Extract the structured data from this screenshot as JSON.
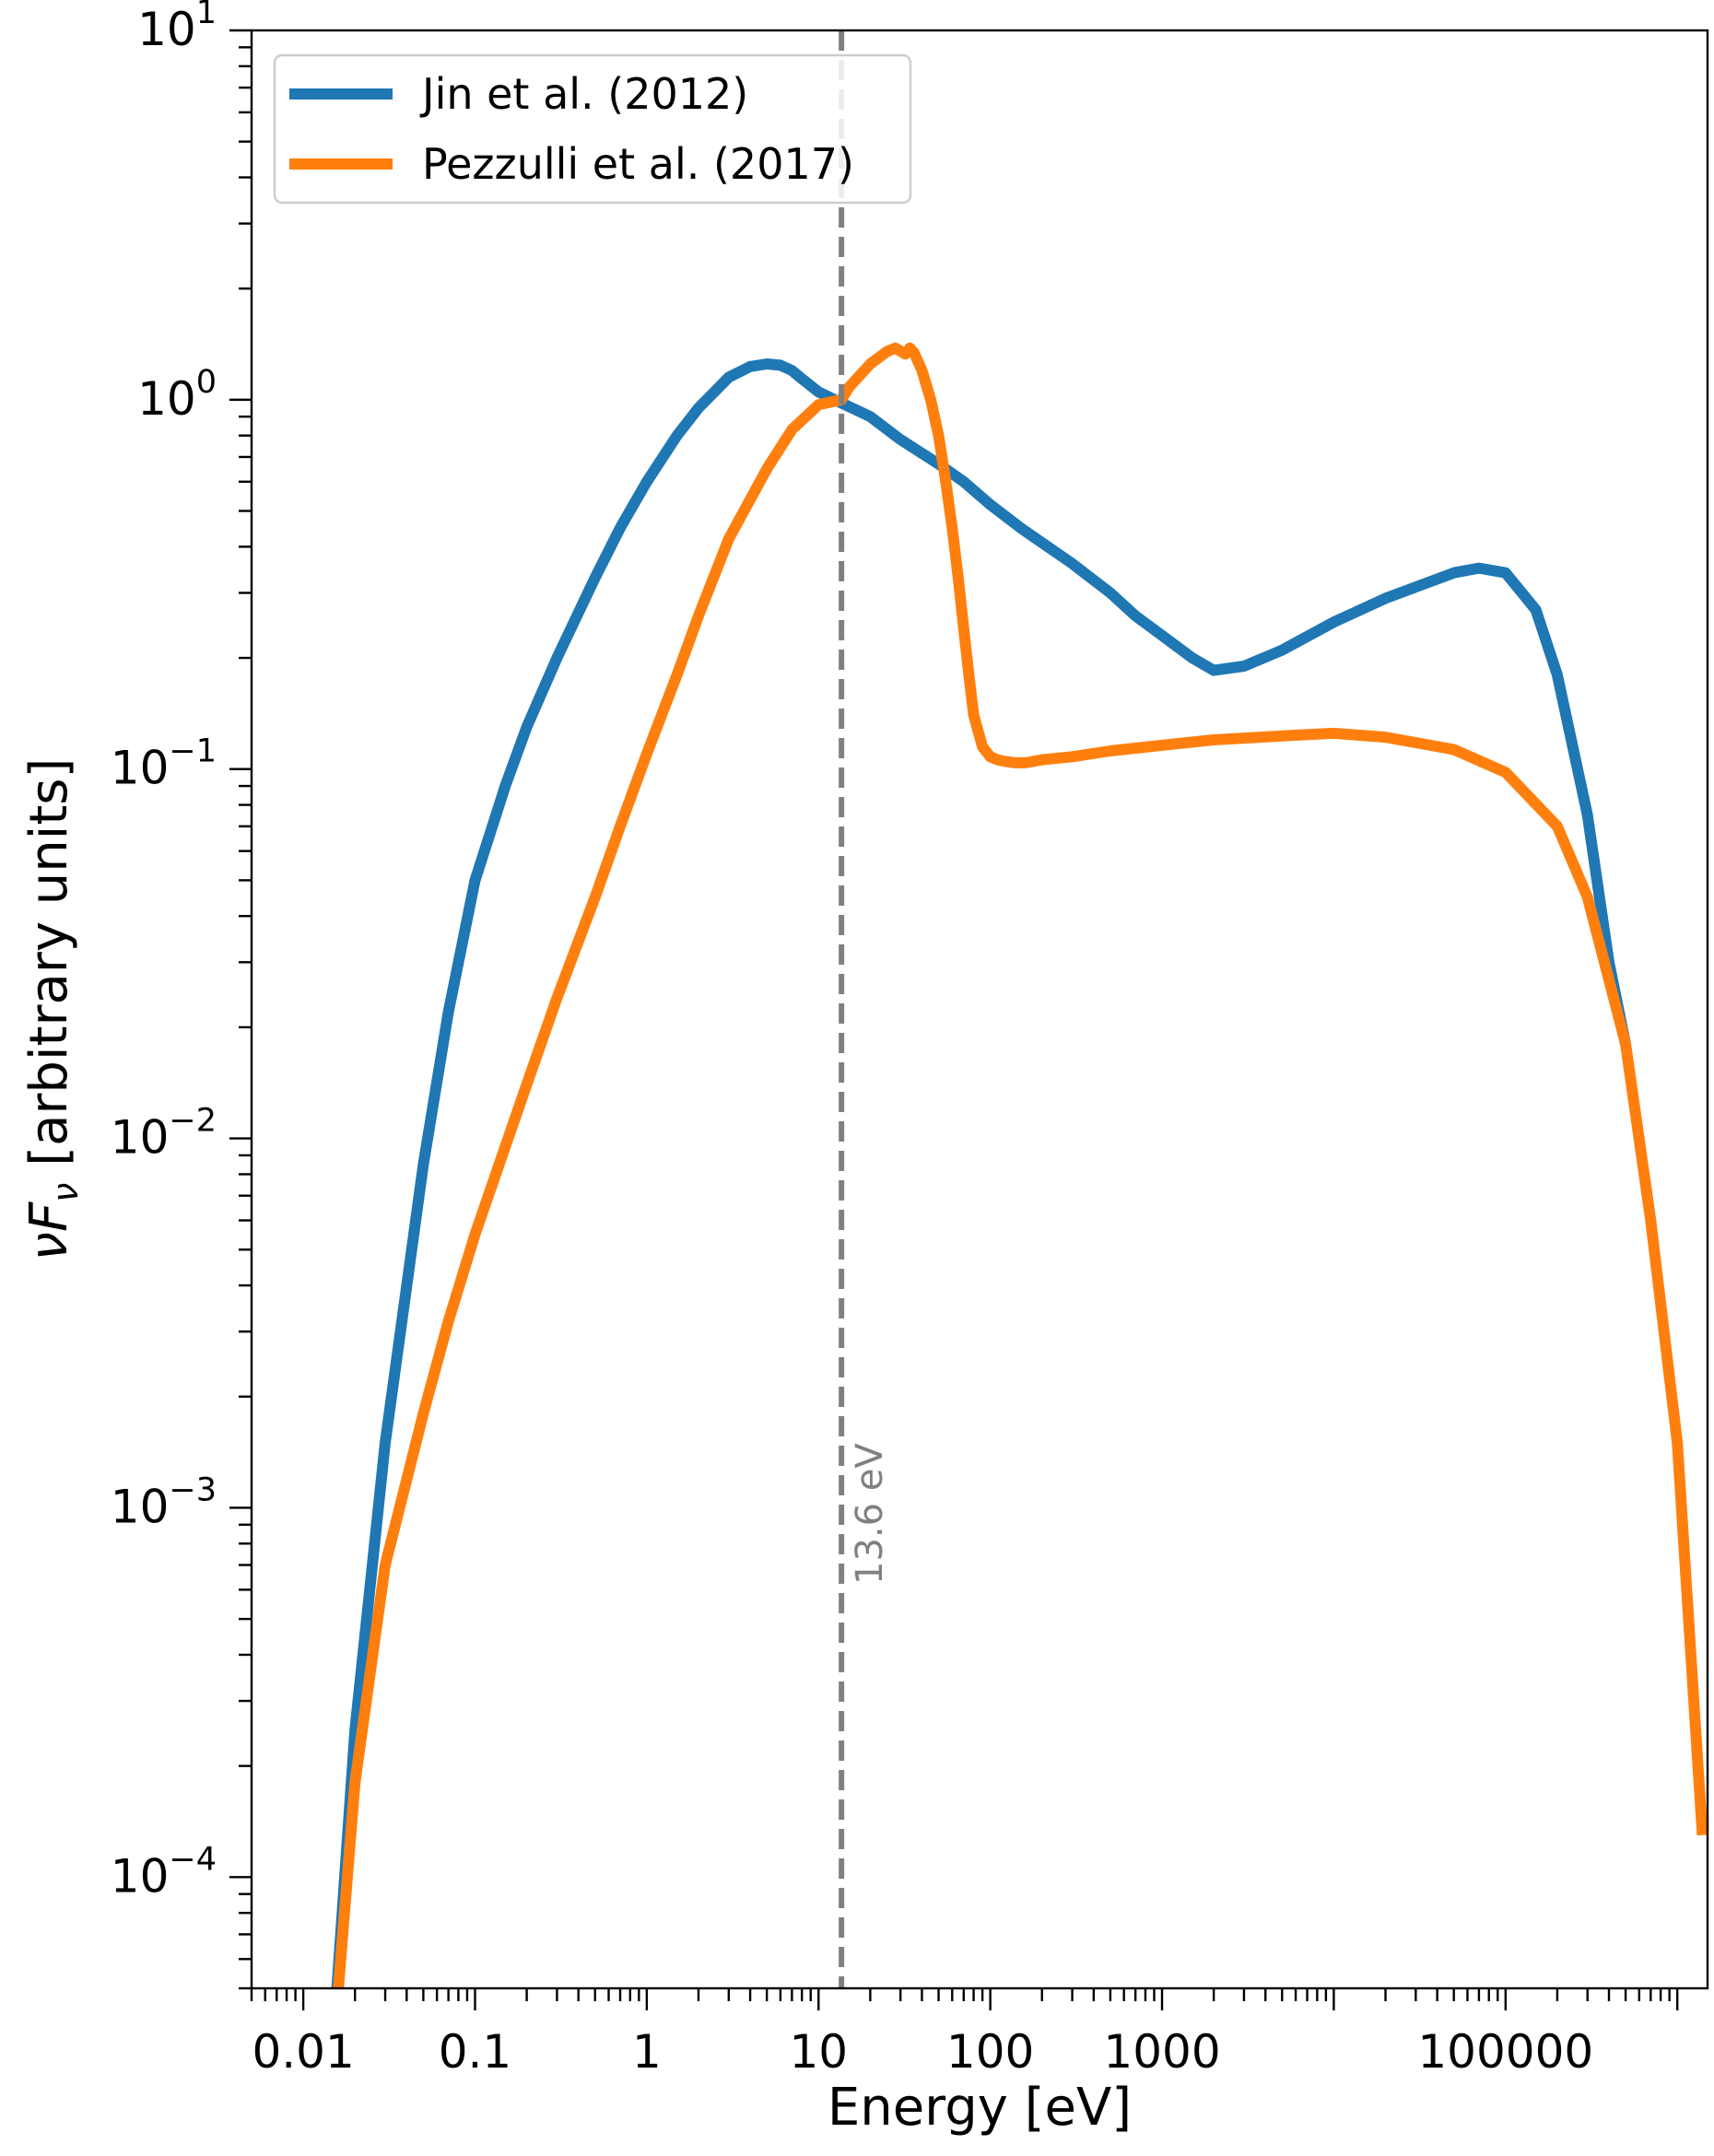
{
  "chart_data": {
    "type": "line",
    "xlabel": "Energy [eV]",
    "ylabel_parts": {
      "base": "νF",
      "sub": "ν",
      "rest": " [arbitrary units]"
    },
    "xscale": "log",
    "yscale": "log",
    "xlim": [
      0.005,
      1500000
    ],
    "ylim": [
      5e-05,
      10
    ],
    "x_tick_labels": [
      {
        "value": 0.01,
        "label": "0.01"
      },
      {
        "value": 0.1,
        "label": "0.1"
      },
      {
        "value": 1,
        "label": "1"
      },
      {
        "value": 10,
        "label": "10"
      },
      {
        "value": 100,
        "label": "100"
      },
      {
        "value": 1000,
        "label": "1000"
      },
      {
        "value": 100000,
        "label": "100000"
      }
    ],
    "y_tick_labels": [
      {
        "value": 10,
        "base": "10",
        "exp": "1"
      },
      {
        "value": 1,
        "base": "10",
        "exp": "0"
      },
      {
        "value": 0.1,
        "base": "10",
        "exp": "−1"
      },
      {
        "value": 0.01,
        "base": "10",
        "exp": "−2"
      },
      {
        "value": 0.001,
        "base": "10",
        "exp": "−3"
      },
      {
        "value": 0.0001,
        "base": "10",
        "exp": "−4"
      }
    ],
    "legend_position": "upper-left",
    "grid": false,
    "vline": {
      "x": 13.6,
      "label": "13.6 eV",
      "color": "#808080"
    },
    "series": [
      {
        "name": "Jin et al. (2012)",
        "color": "#1f77b4",
        "x": [
          0.0157,
          0.02,
          0.03,
          0.05,
          0.07,
          0.1,
          0.15,
          0.2,
          0.3,
          0.5,
          0.7,
          1,
          1.5,
          2,
          3,
          4,
          5,
          6,
          7,
          8,
          10,
          13.6,
          20,
          30,
          50,
          70,
          100,
          150,
          200,
          300,
          500,
          700,
          1000,
          1500,
          2000,
          3000,
          5000,
          10000,
          20000,
          50000,
          70000,
          100000,
          150000,
          200000,
          300000,
          400000,
          500000
        ],
        "y": [
          5e-05,
          0.00025,
          0.0015,
          0.0085,
          0.022,
          0.05,
          0.09,
          0.13,
          0.2,
          0.33,
          0.45,
          0.6,
          0.8,
          0.95,
          1.15,
          1.23,
          1.25,
          1.24,
          1.2,
          1.14,
          1.05,
          0.98,
          0.9,
          0.78,
          0.67,
          0.6,
          0.52,
          0.45,
          0.41,
          0.36,
          0.3,
          0.26,
          0.23,
          0.2,
          0.185,
          0.19,
          0.21,
          0.25,
          0.29,
          0.34,
          0.35,
          0.34,
          0.27,
          0.18,
          0.075,
          0.03,
          0.018
        ]
      },
      {
        "name": "Pezzulli et al. (2017)",
        "color": "#ff7f0e",
        "x": [
          0.016,
          0.02,
          0.03,
          0.05,
          0.07,
          0.1,
          0.15,
          0.2,
          0.3,
          0.5,
          0.7,
          1,
          1.5,
          2,
          3,
          5,
          7,
          10,
          13.6,
          15,
          20,
          25,
          28,
          32,
          34,
          36,
          40,
          45,
          50,
          55,
          60,
          65,
          70,
          75,
          80,
          90,
          100,
          110,
          120,
          140,
          160,
          180,
          200,
          300,
          500,
          1000,
          2000,
          5000,
          10000,
          20000,
          50000,
          100000,
          200000,
          300000,
          500000,
          700000,
          1000000,
          1400000
        ],
        "y": [
          5e-05,
          0.00018,
          0.0007,
          0.0018,
          0.0032,
          0.0055,
          0.0095,
          0.014,
          0.024,
          0.045,
          0.07,
          0.11,
          0.18,
          0.26,
          0.42,
          0.65,
          0.83,
          0.97,
          1.0,
          1.08,
          1.25,
          1.35,
          1.38,
          1.33,
          1.38,
          1.34,
          1.2,
          1.0,
          0.8,
          0.6,
          0.45,
          0.33,
          0.24,
          0.18,
          0.14,
          0.115,
          0.108,
          0.106,
          0.105,
          0.104,
          0.104,
          0.105,
          0.106,
          0.108,
          0.112,
          0.116,
          0.12,
          0.123,
          0.125,
          0.122,
          0.113,
          0.098,
          0.07,
          0.045,
          0.018,
          0.006,
          0.0015,
          0.00013
        ]
      }
    ]
  }
}
